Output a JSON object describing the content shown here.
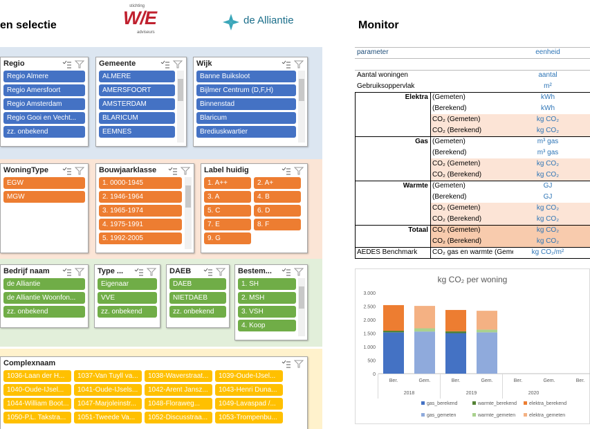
{
  "header": {
    "heading": "en selectie",
    "logo_we": {
      "top": "stichting",
      "mark": "W/E",
      "bottom": "adviseurs"
    },
    "logo_alliantie": "de Alliantie"
  },
  "slicers": [
    {
      "title": "Regio",
      "items": [
        "Regio Almere",
        "Regio Amersfoort",
        "Regio Amsterdam",
        "Regio Gooi en Vecht...",
        "zz. onbekend"
      ]
    },
    {
      "title": "Gemeente",
      "items": [
        "ALMERE",
        "AMERSFOORT",
        "AMSTERDAM",
        "BLARICUM",
        "EEMNES"
      ]
    },
    {
      "title": "Wijk",
      "items": [
        "Banne Buiksloot",
        "Bijlmer Centrum (D,F,H)",
        "Binnenstad",
        "Blaricum",
        "Brediuskwartier"
      ]
    },
    {
      "title": "WoningType",
      "items": [
        "EGW",
        "MGW"
      ]
    },
    {
      "title": "Bouwjaarklasse",
      "items": [
        "1. 0000-1945",
        "2. 1946-1964",
        "3. 1965-1974",
        "4. 1975-1991",
        "5. 1992-2005"
      ]
    },
    {
      "title": "Label huidig",
      "items": [
        "1. A++",
        "2. A+",
        "3. A",
        "4. B",
        "5. C",
        "6. D",
        "7. E",
        "8. F",
        "9. G"
      ]
    },
    {
      "title": "Bedrijf naam",
      "items": [
        "de Alliantie",
        "de Alliantie Woonfon...",
        "zz. onbekend"
      ]
    },
    {
      "title": "Type ...",
      "items": [
        "Eigenaar",
        "VVE",
        "zz. onbekend"
      ]
    },
    {
      "title": "DAEB",
      "items": [
        "DAEB",
        "NIETDAEB",
        "zz. onbekend"
      ]
    },
    {
      "title": "Bestem...",
      "items": [
        "1. SH",
        "2. MSH",
        "3. VSH",
        "4. Koop"
      ]
    },
    {
      "title": "Complexnaam",
      "items": [
        "1036-Laan der H...",
        "1037-Van Tuyll va...",
        "1038-Waverstraat...",
        "1039-Oude-IJsel...",
        "1040-Oude-IJsel...",
        "1041-Oude-IJsels...",
        "1042-Arent Jansz...",
        "1043-Henri Duna...",
        "1044-William Boot...",
        "1047-Marjoleinstr...",
        "1048-Floraweg...",
        "1049-Lavaspad /...",
        "1050-P.L. Takstra...",
        "1051-Tweede Va...",
        "1052-Discusstraa...",
        "1053-Trompenbu..."
      ]
    }
  ],
  "monitor": {
    "title": "Monitor",
    "header": {
      "parameter": "parameter",
      "unit": "eenheid"
    },
    "rows": [
      {
        "label": "Aantal woningen",
        "unit": "aantal"
      },
      {
        "label": "Gebruiksoppervlak",
        "unit": "m²"
      }
    ],
    "sections": [
      {
        "name": "Elektra",
        "rows": [
          {
            "label": "(Gemeten)",
            "unit": "kWh"
          },
          {
            "label": "(Berekend)",
            "unit": "kWh"
          },
          {
            "label": "CO₂ (Gemeten)",
            "unit": "kg CO₂"
          },
          {
            "label": "CO₂ (Berekend)",
            "unit": "kg CO₂"
          }
        ]
      },
      {
        "name": "Gas",
        "rows": [
          {
            "label": "(Gemeten)",
            "unit": "m³ gas"
          },
          {
            "label": "(Berekend)",
            "unit": "m³ gas"
          },
          {
            "label": "CO₂ (Gemeten)",
            "unit": "kg CO₂"
          },
          {
            "label": "CO₂ (Berekend)",
            "unit": "kg CO₂"
          }
        ]
      },
      {
        "name": "Warmte",
        "rows": [
          {
            "label": "(Gemeten)",
            "unit": "GJ"
          },
          {
            "label": "(Berekend)",
            "unit": "GJ"
          },
          {
            "label": "CO₂ (Gemeten)",
            "unit": "kg CO₂"
          },
          {
            "label": "CO₂ (Berekend)",
            "unit": "kg CO₂"
          }
        ]
      },
      {
        "name": "Totaal",
        "rows": [
          {
            "label": "CO₂ (Gemeten)",
            "unit": "kg CO₂"
          },
          {
            "label": "CO₂ (Berekend)",
            "unit": "kg CO₂"
          }
        ]
      }
    ],
    "footer": {
      "label": "AEDES Benchmark",
      "sub": "CO₂ gas en warmte (Gemet",
      "unit": "kg CO₂/m²"
    }
  },
  "chart_data": {
    "type": "stacked_bar",
    "title": "kg CO₂ per woning",
    "categories": [
      "Ber.",
      "Gem.",
      "Ber.",
      "Gem.",
      "Ber.",
      "Gem.",
      "Ber."
    ],
    "groups": [
      "2018",
      "2019",
      "2020"
    ],
    "ylim": [
      0,
      3000
    ],
    "yticks": [
      0,
      500,
      {
        "value": 1000,
        "label": "1.000"
      },
      {
        "value": 1500,
        "label": "1.500"
      },
      {
        "value": 2000,
        "label": "2.000"
      },
      {
        "value": 2500,
        "label": "2.500"
      },
      {
        "value": 3000,
        "label": "3.000"
      }
    ],
    "grid": false,
    "series": [
      {
        "name": "gas_berekend",
        "color": "#4472c4",
        "values": [
          1530,
          null,
          1500,
          null,
          null,
          null,
          null
        ]
      },
      {
        "name": "warmte_berekend",
        "color": "#548235",
        "values": [
          60,
          null,
          70,
          null,
          null,
          null,
          null
        ]
      },
      {
        "name": "elektra_berekend",
        "color": "#ed7d31",
        "values": [
          950,
          null,
          790,
          null,
          null,
          null,
          null
        ]
      },
      {
        "name": "gas_gemeten",
        "color": "#8faadc",
        "values": [
          null,
          1560,
          null,
          1530,
          null,
          null,
          null
        ]
      },
      {
        "name": "warmte_gemeten",
        "color": "#a9d18e",
        "values": [
          null,
          120,
          null,
          100,
          null,
          null,
          null
        ]
      },
      {
        "name": "elektra_gemeten",
        "color": "#f4b183",
        "values": [
          null,
          830,
          null,
          700,
          null,
          null,
          null
        ]
      }
    ]
  }
}
